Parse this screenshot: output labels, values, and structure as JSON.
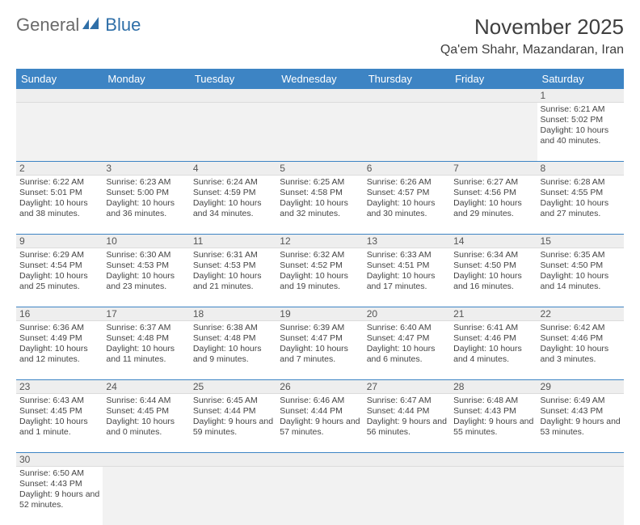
{
  "brand": {
    "part1": "General",
    "part2": "Blue"
  },
  "title": "November 2025",
  "location": "Qa'em Shahr, Mazandaran, Iran",
  "colors": {
    "header_bg": "#3d84c4",
    "header_text": "#ffffff",
    "border": "#3d84c4",
    "numrow_bg": "#eeeeee",
    "text": "#444444"
  },
  "day_headers": [
    "Sunday",
    "Monday",
    "Tuesday",
    "Wednesday",
    "Thursday",
    "Friday",
    "Saturday"
  ],
  "weeks": [
    {
      "nums": [
        "",
        "",
        "",
        "",
        "",
        "",
        "1"
      ],
      "cells": [
        null,
        null,
        null,
        null,
        null,
        null,
        {
          "sunrise": "6:21 AM",
          "sunset": "5:02 PM",
          "daylight": "10 hours and 40 minutes."
        }
      ]
    },
    {
      "nums": [
        "2",
        "3",
        "4",
        "5",
        "6",
        "7",
        "8"
      ],
      "cells": [
        {
          "sunrise": "6:22 AM",
          "sunset": "5:01 PM",
          "daylight": "10 hours and 38 minutes."
        },
        {
          "sunrise": "6:23 AM",
          "sunset": "5:00 PM",
          "daylight": "10 hours and 36 minutes."
        },
        {
          "sunrise": "6:24 AM",
          "sunset": "4:59 PM",
          "daylight": "10 hours and 34 minutes."
        },
        {
          "sunrise": "6:25 AM",
          "sunset": "4:58 PM",
          "daylight": "10 hours and 32 minutes."
        },
        {
          "sunrise": "6:26 AM",
          "sunset": "4:57 PM",
          "daylight": "10 hours and 30 minutes."
        },
        {
          "sunrise": "6:27 AM",
          "sunset": "4:56 PM",
          "daylight": "10 hours and 29 minutes."
        },
        {
          "sunrise": "6:28 AM",
          "sunset": "4:55 PM",
          "daylight": "10 hours and 27 minutes."
        }
      ]
    },
    {
      "nums": [
        "9",
        "10",
        "11",
        "12",
        "13",
        "14",
        "15"
      ],
      "cells": [
        {
          "sunrise": "6:29 AM",
          "sunset": "4:54 PM",
          "daylight": "10 hours and 25 minutes."
        },
        {
          "sunrise": "6:30 AM",
          "sunset": "4:53 PM",
          "daylight": "10 hours and 23 minutes."
        },
        {
          "sunrise": "6:31 AM",
          "sunset": "4:53 PM",
          "daylight": "10 hours and 21 minutes."
        },
        {
          "sunrise": "6:32 AM",
          "sunset": "4:52 PM",
          "daylight": "10 hours and 19 minutes."
        },
        {
          "sunrise": "6:33 AM",
          "sunset": "4:51 PM",
          "daylight": "10 hours and 17 minutes."
        },
        {
          "sunrise": "6:34 AM",
          "sunset": "4:50 PM",
          "daylight": "10 hours and 16 minutes."
        },
        {
          "sunrise": "6:35 AM",
          "sunset": "4:50 PM",
          "daylight": "10 hours and 14 minutes."
        }
      ]
    },
    {
      "nums": [
        "16",
        "17",
        "18",
        "19",
        "20",
        "21",
        "22"
      ],
      "cells": [
        {
          "sunrise": "6:36 AM",
          "sunset": "4:49 PM",
          "daylight": "10 hours and 12 minutes."
        },
        {
          "sunrise": "6:37 AM",
          "sunset": "4:48 PM",
          "daylight": "10 hours and 11 minutes."
        },
        {
          "sunrise": "6:38 AM",
          "sunset": "4:48 PM",
          "daylight": "10 hours and 9 minutes."
        },
        {
          "sunrise": "6:39 AM",
          "sunset": "4:47 PM",
          "daylight": "10 hours and 7 minutes."
        },
        {
          "sunrise": "6:40 AM",
          "sunset": "4:47 PM",
          "daylight": "10 hours and 6 minutes."
        },
        {
          "sunrise": "6:41 AM",
          "sunset": "4:46 PM",
          "daylight": "10 hours and 4 minutes."
        },
        {
          "sunrise": "6:42 AM",
          "sunset": "4:46 PM",
          "daylight": "10 hours and 3 minutes."
        }
      ]
    },
    {
      "nums": [
        "23",
        "24",
        "25",
        "26",
        "27",
        "28",
        "29"
      ],
      "cells": [
        {
          "sunrise": "6:43 AM",
          "sunset": "4:45 PM",
          "daylight": "10 hours and 1 minute."
        },
        {
          "sunrise": "6:44 AM",
          "sunset": "4:45 PM",
          "daylight": "10 hours and 0 minutes."
        },
        {
          "sunrise": "6:45 AM",
          "sunset": "4:44 PM",
          "daylight": "9 hours and 59 minutes."
        },
        {
          "sunrise": "6:46 AM",
          "sunset": "4:44 PM",
          "daylight": "9 hours and 57 minutes."
        },
        {
          "sunrise": "6:47 AM",
          "sunset": "4:44 PM",
          "daylight": "9 hours and 56 minutes."
        },
        {
          "sunrise": "6:48 AM",
          "sunset": "4:43 PM",
          "daylight": "9 hours and 55 minutes."
        },
        {
          "sunrise": "6:49 AM",
          "sunset": "4:43 PM",
          "daylight": "9 hours and 53 minutes."
        }
      ]
    },
    {
      "nums": [
        "30",
        "",
        "",
        "",
        "",
        "",
        ""
      ],
      "cells": [
        {
          "sunrise": "6:50 AM",
          "sunset": "4:43 PM",
          "daylight": "9 hours and 52 minutes."
        },
        null,
        null,
        null,
        null,
        null,
        null
      ]
    }
  ],
  "labels": {
    "sunrise": "Sunrise:",
    "sunset": "Sunset:",
    "daylight": "Daylight:"
  }
}
